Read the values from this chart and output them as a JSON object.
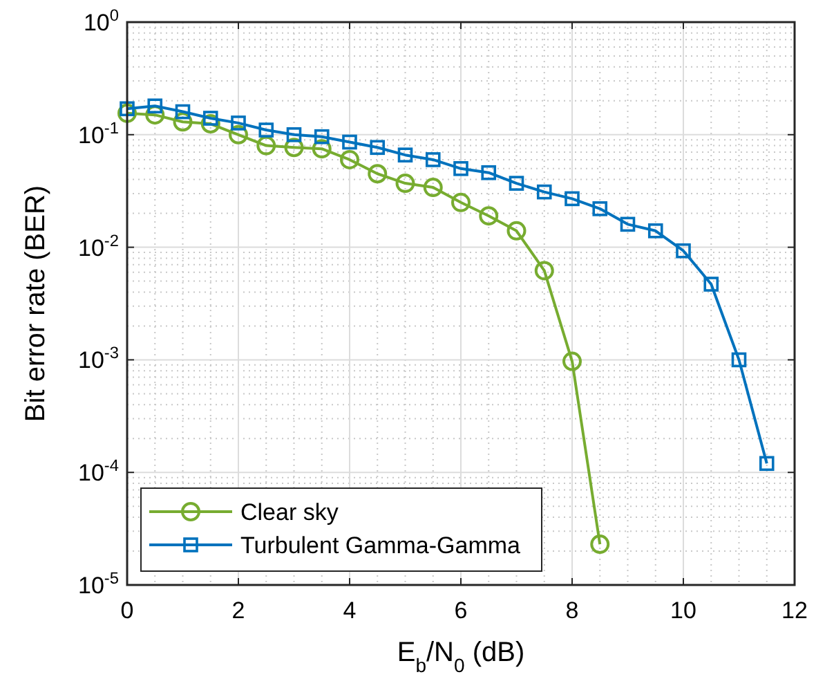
{
  "chart_data": {
    "type": "line",
    "xlabel": "E$_{b}$/N$_{0}$ (dB)",
    "ylabel": "Bit error rate (BER)",
    "xlim": [
      0,
      12
    ],
    "xticks": [
      0,
      2,
      4,
      6,
      8,
      10,
      12
    ],
    "ylim": [
      1e-05,
      1
    ],
    "yticks": [
      {
        "value": 1e-05,
        "label": "10$^{-5}$"
      },
      {
        "value": 0.0001,
        "label": "10$^{-4}$"
      },
      {
        "value": 0.001,
        "label": "10$^{-3}$"
      },
      {
        "value": 0.01,
        "label": "10$^{-2}$"
      },
      {
        "value": 0.1,
        "label": "10$^{-1}$"
      },
      {
        "value": 1,
        "label": "10$^{0}$"
      }
    ],
    "log": "y",
    "grid": true,
    "legend": "bottom left",
    "line_style": "solid",
    "series": [
      {
        "name": "Clear sky",
        "color": "#77ac30",
        "marker": "circle",
        "x": [
          0,
          0.5,
          1,
          1.5,
          2,
          2.5,
          3,
          3.5,
          4,
          4.5,
          5,
          5.5,
          6,
          6.5,
          7,
          7.5,
          8,
          8.5
        ],
        "values": [
          0.155,
          0.15,
          0.13,
          0.125,
          0.1,
          0.08,
          0.077,
          0.075,
          0.06,
          0.045,
          0.037,
          0.034,
          0.025,
          0.019,
          0.014,
          0.0062,
          0.00097,
          2.3e-05
        ]
      },
      {
        "name": "Turbulent Gamma-Gamma",
        "color": "#0072bd",
        "marker": "square",
        "x": [
          0,
          0.5,
          1,
          1.5,
          2,
          2.5,
          3,
          3.5,
          4,
          4.5,
          5,
          5.5,
          6,
          6.5,
          7,
          7.5,
          8,
          8.5,
          9,
          9.5,
          10,
          10.5,
          11,
          11.5
        ],
        "values": [
          0.17,
          0.18,
          0.16,
          0.14,
          0.127,
          0.11,
          0.1,
          0.096,
          0.086,
          0.077,
          0.066,
          0.06,
          0.05,
          0.046,
          0.037,
          0.031,
          0.027,
          0.022,
          0.016,
          0.014,
          0.0093,
          0.0047,
          0.001,
          0.00012
        ]
      }
    ]
  }
}
